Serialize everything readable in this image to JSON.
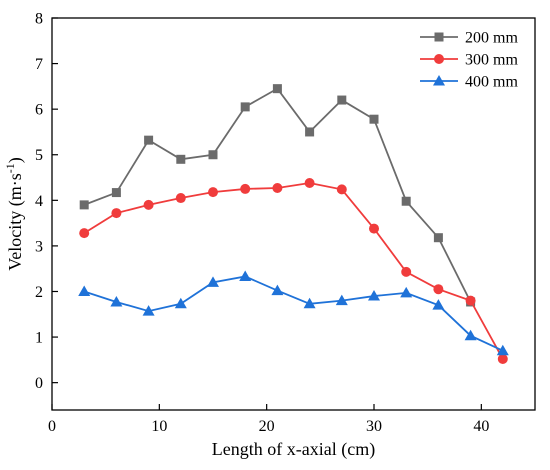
{
  "chart_data": {
    "type": "line",
    "xlabel": "Length of x-axial (cm)",
    "ylabel": {
      "text": "Velocity (m·s",
      "sup": "-1",
      "close": ")"
    },
    "xlim": [
      0,
      45
    ],
    "ylim": [
      -0.6,
      8
    ],
    "xticks": [
      0,
      10,
      20,
      30,
      40
    ],
    "yticks": [
      0,
      1,
      2,
      3,
      4,
      5,
      6,
      7,
      8
    ],
    "grid": false,
    "legend_position": "top-right",
    "x": [
      3,
      6,
      9,
      12,
      15,
      18,
      21,
      24,
      27,
      30,
      33,
      36,
      39,
      42
    ],
    "series": [
      {
        "name": "200 mm",
        "color": "#6b6b6b",
        "marker": "square",
        "values": [
          3.9,
          4.17,
          5.32,
          4.9,
          5.0,
          6.05,
          6.45,
          5.5,
          6.2,
          5.78,
          3.98,
          3.18,
          1.77,
          null
        ]
      },
      {
        "name": "300 mm",
        "color": "#f03c3c",
        "marker": "circle",
        "values": [
          3.28,
          3.72,
          3.9,
          4.05,
          4.18,
          4.25,
          4.27,
          4.38,
          4.24,
          3.38,
          2.43,
          2.05,
          1.8,
          0.52
        ]
      },
      {
        "name": "400 mm",
        "color": "#1f72d8",
        "marker": "triangle",
        "values": [
          2.0,
          1.77,
          1.57,
          1.73,
          2.2,
          2.33,
          2.02,
          1.73,
          1.8,
          1.9,
          1.97,
          1.7,
          1.03,
          0.7
        ]
      }
    ]
  }
}
